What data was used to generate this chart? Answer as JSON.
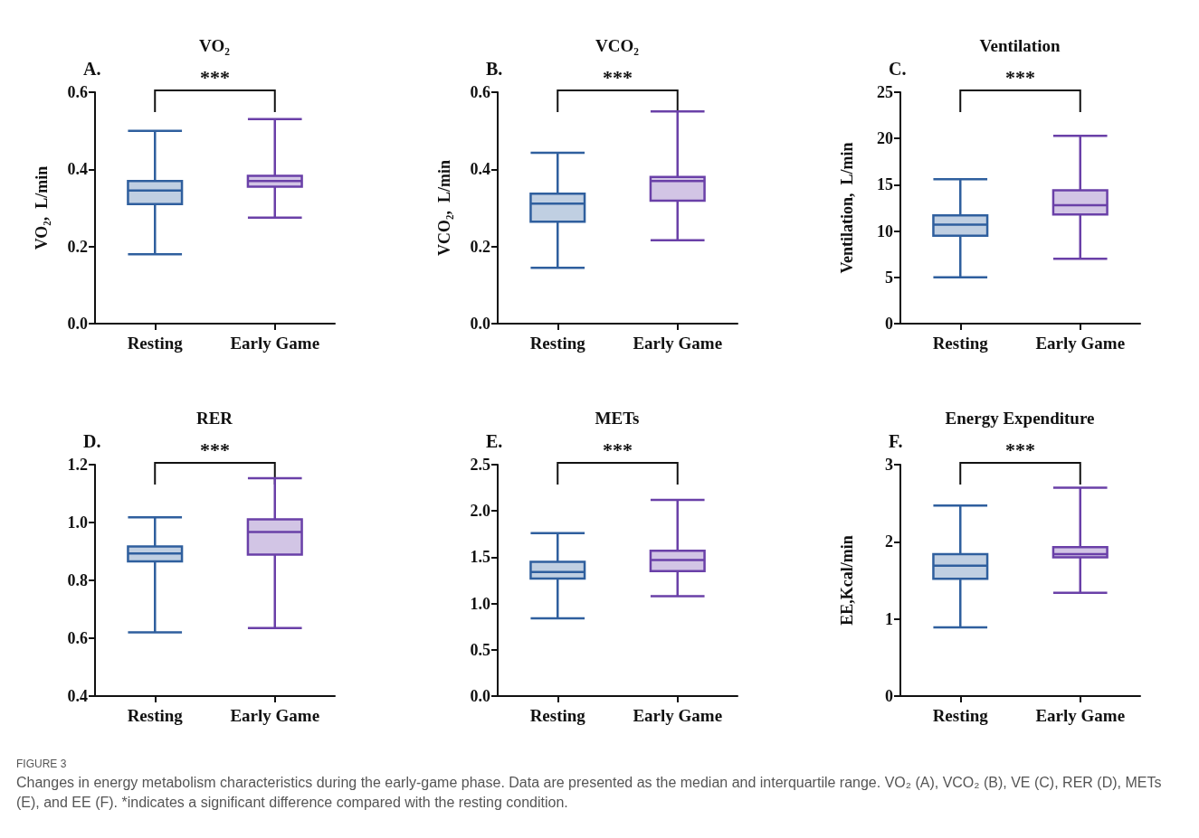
{
  "chart_data": [
    {
      "type": "box",
      "title": "VO₂",
      "ylabel": "VO₂,  L/min",
      "categories": [
        "Resting",
        "Early Game"
      ],
      "colors": [
        "#2f5f9e",
        "#6a40a8"
      ],
      "ylim": [
        0,
        0.6
      ],
      "yticks": [
        {
          "value": 0,
          "label": "0.0"
        },
        0.2,
        0.4,
        0.6
      ],
      "annotations": [
        "A.",
        "***"
      ],
      "boxes": [
        {
          "low": 0.18,
          "q1": 0.31,
          "median": 0.345,
          "q3": 0.37,
          "high": 0.5
        },
        {
          "low": 0.275,
          "q1": 0.355,
          "median": 0.37,
          "q3": 0.383,
          "high": 0.53
        }
      ]
    },
    {
      "type": "box",
      "title": "VCO₂",
      "ylabel": "VCO₂,  L/min",
      "categories": [
        "Resting",
        "Early Game"
      ],
      "colors": [
        "#2f5f9e",
        "#6a40a8"
      ],
      "ylim": [
        0,
        0.6
      ],
      "yticks": [
        {
          "value": 0,
          "label": "0.0"
        },
        0.2,
        0.4,
        0.6
      ],
      "annotations": [
        "B.",
        "***"
      ],
      "boxes": [
        {
          "low": 0.145,
          "q1": 0.264,
          "median": 0.311,
          "q3": 0.337,
          "high": 0.443
        },
        {
          "low": 0.216,
          "q1": 0.319,
          "median": 0.37,
          "q3": 0.38,
          "high": 0.55
        }
      ]
    },
    {
      "type": "box",
      "title": "Ventilation",
      "ylabel": "Ventilation,  L/min",
      "categories": [
        "Resting",
        "Early Game"
      ],
      "colors": [
        "#2f5f9e",
        "#6a40a8"
      ],
      "ylim": [
        0,
        25
      ],
      "yticks": [
        0,
        5,
        10,
        15,
        20,
        25
      ],
      "annotations": [
        "C.",
        "***"
      ],
      "boxes": [
        {
          "low": 5.0,
          "q1": 9.5,
          "median": 10.7,
          "q3": 11.7,
          "high": 15.6
        },
        {
          "low": 7.0,
          "q1": 11.8,
          "median": 12.8,
          "q3": 14.4,
          "high": 20.3
        }
      ]
    },
    {
      "type": "box",
      "title": "RER",
      "categories": [
        "Resting",
        "Early Game"
      ],
      "colors": [
        "#2f5f9e",
        "#6a40a8"
      ],
      "ylim": [
        0.4,
        1.2
      ],
      "yticks": [
        0.4,
        0.6,
        0.8,
        {
          "value": 1,
          "label": "1.0"
        },
        1.2
      ],
      "annotations": [
        "D.",
        "***"
      ],
      "boxes": [
        {
          "low": 0.62,
          "q1": 0.866,
          "median": 0.893,
          "q3": 0.917,
          "high": 1.018
        },
        {
          "low": 0.635,
          "q1": 0.889,
          "median": 0.967,
          "q3": 1.011,
          "high": 1.153
        }
      ]
    },
    {
      "type": "box",
      "title": "METs",
      "categories": [
        "Resting",
        "Early Game"
      ],
      "colors": [
        "#2f5f9e",
        "#6a40a8"
      ],
      "ylim": [
        0,
        2.5
      ],
      "yticks": [
        {
          "value": 0,
          "label": "0.0"
        },
        0.5,
        {
          "value": 1,
          "label": "1.0"
        },
        1.5,
        {
          "value": 2,
          "label": "2.0"
        },
        2.5
      ],
      "annotations": [
        "E.",
        "***"
      ],
      "boxes": [
        {
          "low": 0.84,
          "q1": 1.27,
          "median": 1.34,
          "q3": 1.45,
          "high": 1.76
        },
        {
          "low": 1.08,
          "q1": 1.35,
          "median": 1.47,
          "q3": 1.57,
          "high": 2.12
        }
      ]
    },
    {
      "type": "box",
      "title": "Energy Expenditure",
      "ylabel": "EE,Kcal/min",
      "categories": [
        "Resting",
        "Early Game"
      ],
      "colors": [
        "#2f5f9e",
        "#6a40a8"
      ],
      "ylim": [
        0,
        3
      ],
      "yticks": [
        0,
        1,
        2,
        3
      ],
      "annotations": [
        "F.",
        "***"
      ],
      "boxes": [
        {
          "low": 0.89,
          "q1": 1.52,
          "median": 1.69,
          "q3": 1.84,
          "high": 2.47
        },
        {
          "low": 1.34,
          "q1": 1.8,
          "median": 1.84,
          "q3": 1.93,
          "high": 2.7
        }
      ]
    },
    {
      "type": "other",
      "title": "FIGURE 3",
      "annotations": [
        "Changes in energy metabolism characteristics during the early-game phase. Data are presented as the median and interquartile range. VO₂ (A), VCO₂ (B), VE (C), RER (D), METs (E), and EE (F). *indicates a significant difference compared with the resting condition."
      ]
    }
  ]
}
